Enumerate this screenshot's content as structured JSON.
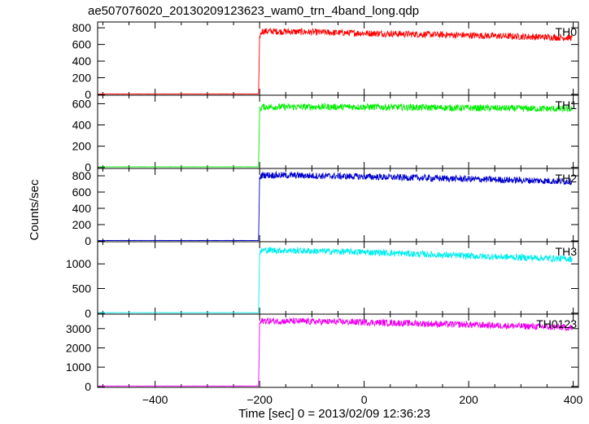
{
  "title": "ae507076020_20130209123623_wam0_trn_4band_long.qdp",
  "ylabel": "Counts/sec",
  "xlabel": "Time [sec] 0 = 2013/02/09 12:36:23",
  "chart_data": {
    "type": "line",
    "title": "ae507076020_20130209123623_wam0_trn_4band_long.qdp",
    "xlabel": "Time [sec] 0 = 2013/02/09 12:36:23",
    "ylabel": "Counts/sec",
    "xlim": [
      -510,
      410
    ],
    "x_ticks": [
      -400,
      -200,
      0,
      200,
      400
    ],
    "grid": false,
    "panels": [
      {
        "name": "TH0",
        "color": "#ff0000",
        "ylim": [
          -10,
          870
        ],
        "y_ticks": [
          0,
          200,
          400,
          600,
          800
        ],
        "x": [
          -510,
          -202,
          -200,
          -195,
          0,
          200,
          400
        ],
        "y": [
          5,
          5,
          700,
          760,
          735,
          710,
          680
        ]
      },
      {
        "name": "TH1",
        "color": "#00ee00",
        "ylim": [
          -10,
          680
        ],
        "y_ticks": [
          0,
          200,
          400,
          600
        ],
        "x": [
          -510,
          -202,
          -200,
          -195,
          0,
          200,
          400
        ],
        "y": [
          5,
          5,
          540,
          570,
          570,
          560,
          550
        ]
      },
      {
        "name": "TH2",
        "color": "#0000cc",
        "ylim": [
          -10,
          890
        ],
        "y_ticks": [
          0,
          200,
          400,
          600,
          800
        ],
        "x": [
          -510,
          -202,
          -200,
          -195,
          0,
          200,
          400
        ],
        "y": [
          5,
          5,
          780,
          810,
          790,
          760,
          730
        ]
      },
      {
        "name": "TH3",
        "color": "#00eeee",
        "ylim": [
          -20,
          1450
        ],
        "y_ticks": [
          0,
          500,
          1000
        ],
        "x": [
          -510,
          -202,
          -200,
          -195,
          0,
          200,
          400
        ],
        "y": [
          10,
          10,
          1200,
          1280,
          1240,
          1160,
          1100
        ]
      },
      {
        "name": "TH0123",
        "color": "#ee00ee",
        "ylim": [
          -50,
          3750
        ],
        "y_ticks": [
          0,
          1000,
          2000,
          3000
        ],
        "x": [
          -510,
          -202,
          -200,
          -195,
          0,
          200,
          400
        ],
        "y": [
          20,
          20,
          3250,
          3400,
          3330,
          3200,
          3050
        ]
      }
    ]
  }
}
